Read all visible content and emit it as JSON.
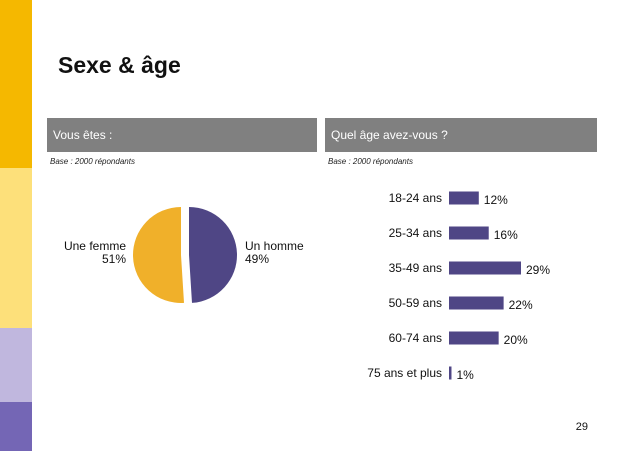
{
  "slide": {
    "title": "Sexe & âge",
    "page_number": "29",
    "colors": {
      "header_bar": "#808080",
      "femme": "#f0b02a",
      "homme": "#4f4685",
      "bar": "#4f4685"
    }
  },
  "left_panel": {
    "header": "Vous êtes :",
    "base": "Base : 2000 répondants"
  },
  "right_panel": {
    "header": "Quel âge avez-vous ?",
    "base": "Base : 2000 répondants"
  },
  "chart_data": [
    {
      "type": "pie",
      "slices": [
        {
          "label": "Une femme",
          "value": 51,
          "value_label": "51%",
          "color": "#f0b02a"
        },
        {
          "label": "Un homme",
          "value": 49,
          "value_label": "49%",
          "color": "#4f4685"
        }
      ]
    },
    {
      "type": "bar",
      "orientation": "horizontal",
      "categories": [
        "18-24 ans",
        "25-34 ans",
        "35-49 ans",
        "50-59 ans",
        "60-74 ans",
        "75 ans et plus"
      ],
      "values": [
        12,
        16,
        29,
        22,
        20,
        1
      ],
      "value_labels": [
        "12%",
        "16%",
        "29%",
        "22%",
        "20%",
        "1%"
      ],
      "unit": "%"
    }
  ]
}
